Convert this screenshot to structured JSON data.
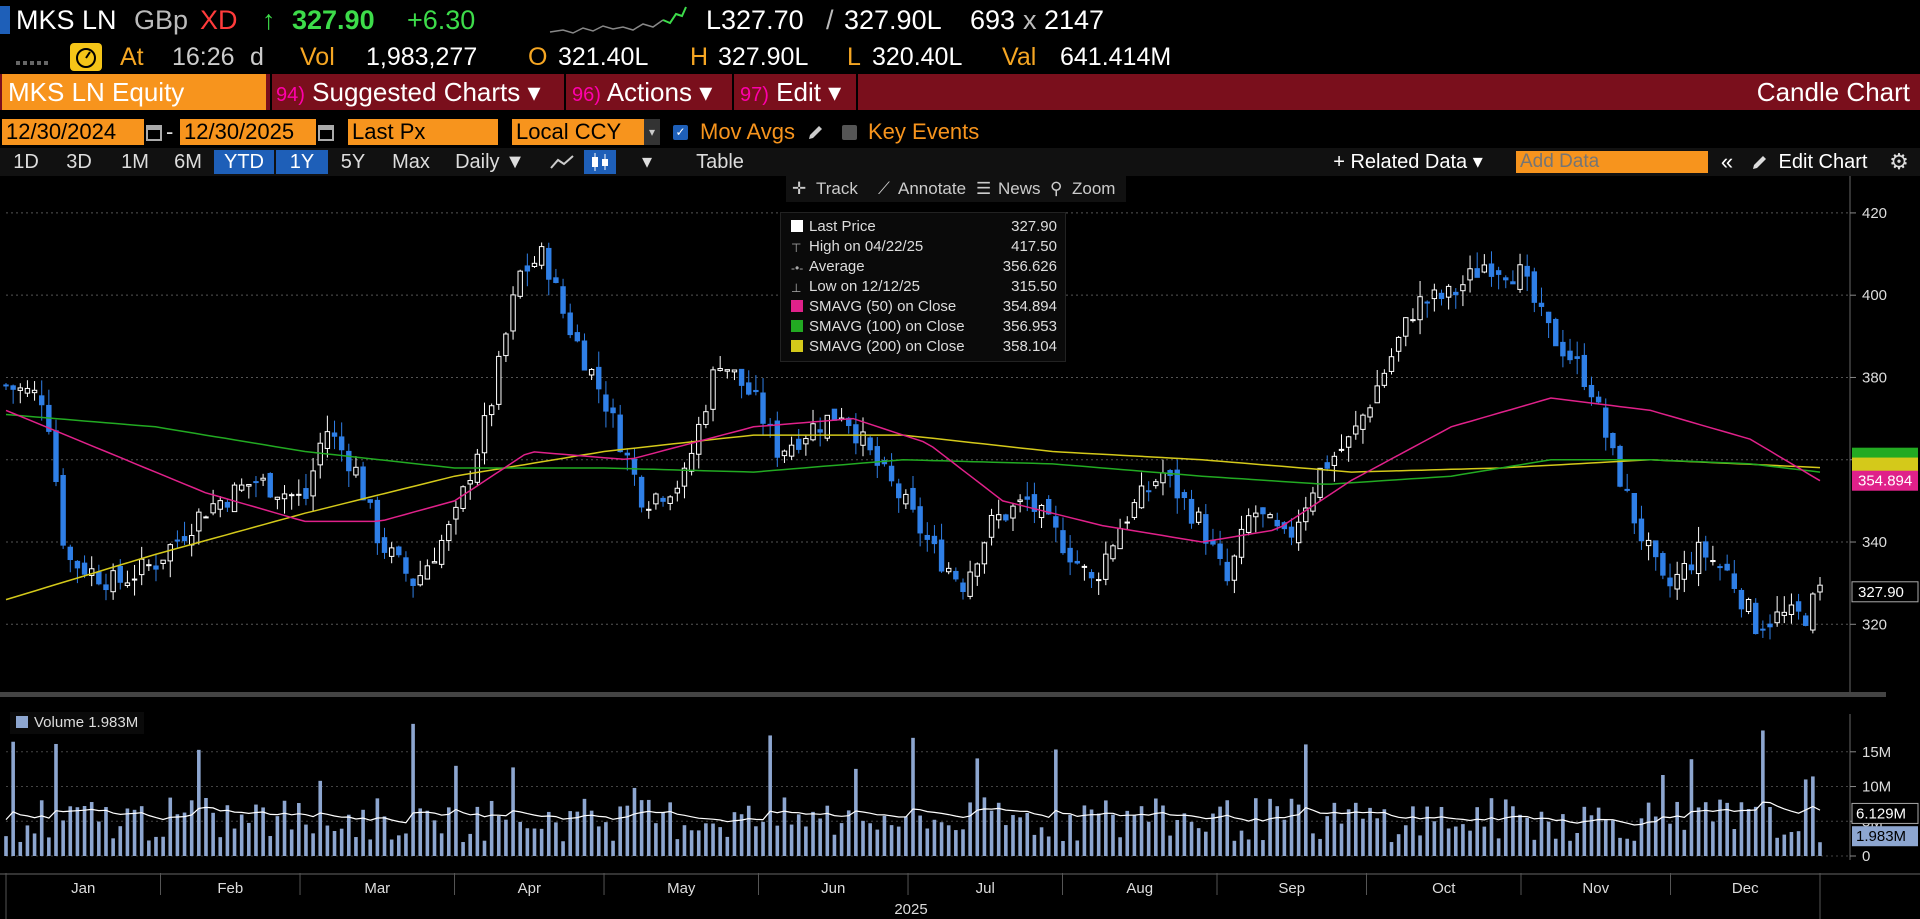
{
  "header": {
    "ticker": "MKS LN",
    "currency": "GBp",
    "flag": "XD",
    "arrow": "↑",
    "last": "327.90",
    "change": "+6.30",
    "bid": "L327.70",
    "ask": "327.90L",
    "size_a": "693",
    "size_sep": "x",
    "size_b": "2147",
    "at_label": "At",
    "time": "16:26",
    "time_suffix": "d",
    "vol_label": "Vol",
    "vol": "1,983,277",
    "open_label": "O",
    "open": "321.40L",
    "high_label": "H",
    "high": "327.90L",
    "low_label": "L",
    "low": "320.40L",
    "val_label": "Val",
    "val": "641.414M"
  },
  "menubar": {
    "security": "MKS LN Equity",
    "suggested_num": "94)",
    "suggested": "Suggested Charts ▾",
    "actions_num": "96)",
    "actions": "Actions ▾",
    "edit_num": "97)",
    "edit": "Edit ▾",
    "chart_type": "Candle Chart"
  },
  "controls": {
    "start_date": "12/30/2024",
    "dash": "-",
    "end_date": "12/30/2025",
    "field": "Last Px",
    "ccy": "Local CCY",
    "mov_avgs": "Mov Avgs",
    "key_events": "Key Events"
  },
  "toolbar": {
    "periods": [
      "1D",
      "3D",
      "1M",
      "6M",
      "YTD",
      "1Y",
      "5Y",
      "Max"
    ],
    "freq": "Daily ▼",
    "table": "Table",
    "related": "+ Related Data ▾",
    "add_data_placeholder": "Add Data",
    "edit_chart": "Edit Chart"
  },
  "chart_tools": {
    "track": "Track",
    "annotate": "Annotate",
    "news": "News",
    "zoom": "Zoom"
  },
  "legend": {
    "last_price_label": "Last Price",
    "last_price": "327.90",
    "high_label": "High on 04/22/25",
    "high": "417.50",
    "avg_label": "Average",
    "avg": "356.626",
    "low_label": "Low on 12/12/25",
    "low": "315.50",
    "sma50_label": "SMAVG (50)  on Close",
    "sma50": "354.894",
    "sma100_label": "SMAVG (100)  on Close",
    "sma100": "356.953",
    "sma200_label": "SMAVG (200)  on Close",
    "sma200": "358.104",
    "volume_label": "Volume 1.983M"
  },
  "colors": {
    "sma50": "#e0218a",
    "sma100": "#22aa22",
    "sma200": "#d4c91a",
    "candle": "#2f7fe6",
    "volume": "#8da6d0",
    "amber": "#f7941d",
    "menubar": "#7a0f1c"
  },
  "chart_data": {
    "type": "candlestick",
    "price_axis": {
      "ticks": [
        320,
        340,
        360,
        380,
        400,
        420
      ],
      "ylim": [
        305,
        428
      ]
    },
    "volume_axis": {
      "ticks": [
        "0",
        "5M",
        "10M",
        "15M"
      ]
    },
    "price_tags": {
      "sma50": "354.894",
      "last": "327.90"
    },
    "volume_tags": {
      "avg": "6.129M",
      "last": "1.983M"
    },
    "x_months": [
      "Jan",
      "Feb",
      "Mar",
      "Apr",
      "May",
      "Jun",
      "Jul",
      "Aug",
      "Sep",
      "Oct",
      "Nov",
      "Dec"
    ],
    "x_year": "2025",
    "close_anchors": [
      {
        "d": 0,
        "v": 378
      },
      {
        "d": 8,
        "v": 375
      },
      {
        "d": 12,
        "v": 336
      },
      {
        "d": 22,
        "v": 330
      },
      {
        "d": 30,
        "v": 335
      },
      {
        "d": 40,
        "v": 348
      },
      {
        "d": 50,
        "v": 355
      },
      {
        "d": 60,
        "v": 350
      },
      {
        "d": 64,
        "v": 368
      },
      {
        "d": 70,
        "v": 358
      },
      {
        "d": 75,
        "v": 340
      },
      {
        "d": 82,
        "v": 330
      },
      {
        "d": 90,
        "v": 345
      },
      {
        "d": 97,
        "v": 372
      },
      {
        "d": 103,
        "v": 405
      },
      {
        "d": 108,
        "v": 410
      },
      {
        "d": 112,
        "v": 395
      },
      {
        "d": 120,
        "v": 375
      },
      {
        "d": 128,
        "v": 350
      },
      {
        "d": 136,
        "v": 355
      },
      {
        "d": 143,
        "v": 385
      },
      {
        "d": 150,
        "v": 375
      },
      {
        "d": 155,
        "v": 362
      },
      {
        "d": 162,
        "v": 368
      },
      {
        "d": 168,
        "v": 372
      },
      {
        "d": 174,
        "v": 360
      },
      {
        "d": 180,
        "v": 350
      },
      {
        "d": 186,
        "v": 338
      },
      {
        "d": 192,
        "v": 330
      },
      {
        "d": 198,
        "v": 345
      },
      {
        "d": 205,
        "v": 350
      },
      {
        "d": 212,
        "v": 340
      },
      {
        "d": 218,
        "v": 330
      },
      {
        "d": 224,
        "v": 345
      },
      {
        "d": 232,
        "v": 357
      },
      {
        "d": 240,
        "v": 344
      },
      {
        "d": 245,
        "v": 330
      },
      {
        "d": 250,
        "v": 348
      },
      {
        "d": 257,
        "v": 340
      },
      {
        "d": 264,
        "v": 358
      },
      {
        "d": 270,
        "v": 365
      },
      {
        "d": 276,
        "v": 380
      },
      {
        "d": 283,
        "v": 398
      },
      {
        "d": 290,
        "v": 400
      },
      {
        "d": 297,
        "v": 408
      },
      {
        "d": 304,
        "v": 405
      },
      {
        "d": 309,
        "v": 392
      },
      {
        "d": 314,
        "v": 385
      },
      {
        "d": 318,
        "v": 378
      },
      {
        "d": 322,
        "v": 362
      },
      {
        "d": 327,
        "v": 345
      },
      {
        "d": 333,
        "v": 328
      },
      {
        "d": 340,
        "v": 338
      },
      {
        "d": 346,
        "v": 332
      },
      {
        "d": 351,
        "v": 320
      },
      {
        "d": 356,
        "v": 322
      },
      {
        "d": 361,
        "v": 322
      },
      {
        "d": 364,
        "v": 327.9
      }
    ],
    "sma50_anchors": [
      {
        "d": 0,
        "v": 372
      },
      {
        "d": 20,
        "v": 362
      },
      {
        "d": 40,
        "v": 352
      },
      {
        "d": 60,
        "v": 345
      },
      {
        "d": 75,
        "v": 345
      },
      {
        "d": 90,
        "v": 350
      },
      {
        "d": 105,
        "v": 362
      },
      {
        "d": 125,
        "v": 360
      },
      {
        "d": 150,
        "v": 368
      },
      {
        "d": 170,
        "v": 370
      },
      {
        "d": 185,
        "v": 364
      },
      {
        "d": 200,
        "v": 350
      },
      {
        "d": 220,
        "v": 344
      },
      {
        "d": 240,
        "v": 340
      },
      {
        "d": 255,
        "v": 343
      },
      {
        "d": 270,
        "v": 355
      },
      {
        "d": 290,
        "v": 368
      },
      {
        "d": 310,
        "v": 375
      },
      {
        "d": 330,
        "v": 372
      },
      {
        "d": 350,
        "v": 365
      },
      {
        "d": 364,
        "v": 354.9
      }
    ],
    "sma100_anchors": [
      {
        "d": 0,
        "v": 371
      },
      {
        "d": 30,
        "v": 368
      },
      {
        "d": 60,
        "v": 362
      },
      {
        "d": 90,
        "v": 358
      },
      {
        "d": 120,
        "v": 358
      },
      {
        "d": 150,
        "v": 357
      },
      {
        "d": 180,
        "v": 360
      },
      {
        "d": 210,
        "v": 359
      },
      {
        "d": 240,
        "v": 356
      },
      {
        "d": 265,
        "v": 354
      },
      {
        "d": 290,
        "v": 356
      },
      {
        "d": 310,
        "v": 360
      },
      {
        "d": 330,
        "v": 360
      },
      {
        "d": 350,
        "v": 359
      },
      {
        "d": 364,
        "v": 357.0
      }
    ],
    "sma200_anchors": [
      {
        "d": 0,
        "v": 326
      },
      {
        "d": 30,
        "v": 337
      },
      {
        "d": 60,
        "v": 347
      },
      {
        "d": 90,
        "v": 356
      },
      {
        "d": 120,
        "v": 362
      },
      {
        "d": 150,
        "v": 366
      },
      {
        "d": 180,
        "v": 366
      },
      {
        "d": 210,
        "v": 362
      },
      {
        "d": 240,
        "v": 360
      },
      {
        "d": 270,
        "v": 357
      },
      {
        "d": 300,
        "v": 358
      },
      {
        "d": 330,
        "v": 360
      },
      {
        "d": 364,
        "v": 358.1
      }
    ],
    "volume_ref": {
      "avg_M": 6.129,
      "last_M": 1.983
    }
  }
}
